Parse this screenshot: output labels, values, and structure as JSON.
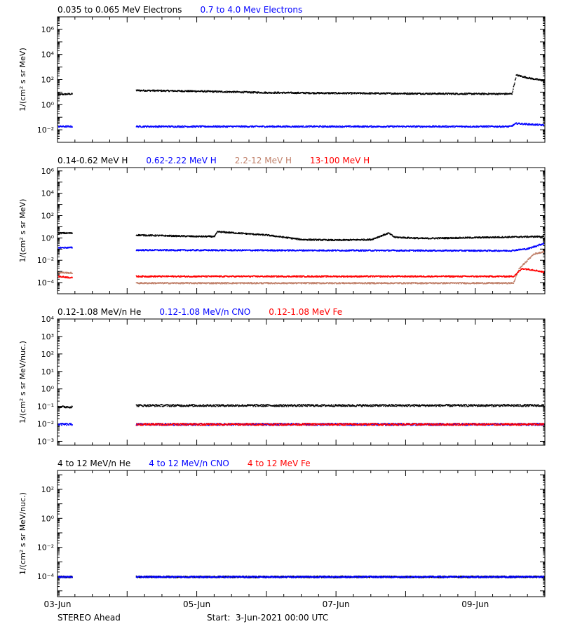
{
  "colors": {
    "black": "#000000",
    "blue": "#0000ff",
    "tan": "#c0806a",
    "red": "#ff0000"
  },
  "chart_data": [
    {
      "type": "scatter",
      "log_y": true,
      "ylabel": "1/(cm² s sr MeV)",
      "ylim": [
        0.001,
        10000000
      ],
      "y_ticks": [
        {
          "v": 0.01,
          "label": "10⁻²"
        },
        {
          "v": 1,
          "label": "10⁰"
        },
        {
          "v": 100,
          "label": "10²"
        },
        {
          "v": 10000,
          "label": "10⁴"
        },
        {
          "v": 1000000,
          "label": "10⁶"
        }
      ],
      "series": [
        {
          "name": "0.035 to 0.065 MeV Electrons",
          "color": "black",
          "segments": [
            {
              "x": [
                "2021-06-03",
                "2021-06-03 05:00"
              ],
              "y": [
                7,
                8
              ]
            },
            {
              "x": [
                "2021-06-04 03:00",
                "2021-06-05",
                "2021-06-06",
                "2021-06-07",
                "2021-06-08",
                "2021-06-09",
                "2021-06-09 12:30",
                "2021-06-09 14:00",
                "2021-06-09 18:00",
                "2021-06-10"
              ],
              "y": [
                15,
                13,
                10,
                9,
                8.5,
                8,
                8,
                250,
                150,
                85
              ]
            }
          ]
        },
        {
          "name": "0.7 to 4.0 Mev Electrons",
          "color": "blue",
          "segments": [
            {
              "x": [
                "2021-06-03",
                "2021-06-03 05:00"
              ],
              "y": [
                0.02,
                0.02
              ]
            },
            {
              "x": [
                "2021-06-04 03:00",
                "2021-06-09 12:00",
                "2021-06-09 14:00",
                "2021-06-10"
              ],
              "y": [
                0.02,
                0.02,
                0.035,
                0.025
              ]
            }
          ]
        }
      ]
    },
    {
      "type": "scatter",
      "log_y": true,
      "ylabel": "1/(cm² s sr MeV)",
      "ylim": [
        1e-05,
        2000000
      ],
      "y_ticks": [
        {
          "v": 0.0001,
          "label": "10⁻⁴"
        },
        {
          "v": 0.01,
          "label": "10⁻²"
        },
        {
          "v": 1,
          "label": "10⁰"
        },
        {
          "v": 100,
          "label": "10²"
        },
        {
          "v": 10000,
          "label": "10⁴"
        },
        {
          "v": 1000000,
          "label": "10⁶"
        }
      ],
      "series": [
        {
          "name": "0.14-0.62 MeV H",
          "color": "black",
          "segments": [
            {
              "x": [
                "2021-06-03",
                "2021-06-03 05:00"
              ],
              "y": [
                3,
                3
              ]
            },
            {
              "x": [
                "2021-06-04 03:00",
                "2021-06-05",
                "2021-06-05 06:00",
                "2021-06-05 07:00",
                "2021-06-06",
                "2021-06-06 12:00",
                "2021-06-07",
                "2021-06-07 12:00",
                "2021-06-07 18:00",
                "2021-06-07 20:00",
                "2021-06-08 06:00",
                "2021-06-09",
                "2021-06-10"
              ],
              "y": [
                2,
                1.5,
                1.5,
                4,
                2,
                0.8,
                0.7,
                0.8,
                3,
                1.3,
                1,
                1.2,
                1.5
              ]
            }
          ]
        },
        {
          "name": "0.62-2.22 MeV H",
          "color": "blue",
          "segments": [
            {
              "x": [
                "2021-06-03",
                "2021-06-03 05:00"
              ],
              "y": [
                0.15,
                0.15
              ]
            },
            {
              "x": [
                "2021-06-04 03:00",
                "2021-06-09 12:00",
                "2021-06-09 18:00",
                "2021-06-10"
              ],
              "y": [
                0.09,
                0.08,
                0.12,
                0.4
              ]
            }
          ]
        },
        {
          "name": "2.2-12 MeV H",
          "color": "tan",
          "segments": [
            {
              "x": [
                "2021-06-03",
                "2021-06-03 05:00"
              ],
              "y": [
                0.0009,
                0.0008
              ]
            },
            {
              "x": [
                "2021-06-04 03:00",
                "2021-06-09 13:00",
                "2021-06-09 15:00",
                "2021-06-09 20:00",
                "2021-06-10"
              ],
              "y": [
                0.0001,
                0.0001,
                0.002,
                0.04,
                0.07
              ]
            }
          ]
        },
        {
          "name": "13-100 MeV H",
          "color": "red",
          "segments": [
            {
              "x": [
                "2021-06-03",
                "2021-06-03 05:00"
              ],
              "y": [
                0.0004,
                0.0003
              ]
            },
            {
              "x": [
                "2021-06-04 03:00",
                "2021-06-09 13:00",
                "2021-06-09 16:00",
                "2021-06-09 20:00",
                "2021-06-10"
              ],
              "y": [
                0.0004,
                0.0004,
                0.002,
                0.0015,
                0.0009
              ]
            }
          ]
        }
      ]
    },
    {
      "type": "scatter",
      "log_y": true,
      "ylabel": "1/(cm² s sr MeV/nuc.)",
      "ylim": [
        0.0006,
        10000
      ],
      "y_ticks": [
        {
          "v": 0.001,
          "label": "10⁻³"
        },
        {
          "v": 0.01,
          "label": "10⁻²"
        },
        {
          "v": 0.1,
          "label": "10⁻¹"
        },
        {
          "v": 1,
          "label": "10⁰"
        },
        {
          "v": 10,
          "label": "10¹"
        },
        {
          "v": 100,
          "label": "10²"
        },
        {
          "v": 1000,
          "label": "10³"
        },
        {
          "v": 10000,
          "label": "10⁴"
        }
      ],
      "series": [
        {
          "name": "0.12-1.08 MeV/n He",
          "color": "black",
          "segments": [
            {
              "x": [
                "2021-06-03",
                "2021-06-03 05:00"
              ],
              "y": [
                0.1,
                0.1
              ]
            },
            {
              "x": [
                "2021-06-04 03:00",
                "2021-06-10"
              ],
              "y": [
                0.12,
                0.12
              ]
            }
          ]
        },
        {
          "name": "0.12-1.08 MeV/n CNO",
          "color": "blue",
          "segments": [
            {
              "x": [
                "2021-06-03",
                "2021-06-03 05:00"
              ],
              "y": [
                0.01,
                0.01
              ]
            },
            {
              "x": [
                "2021-06-04 03:00",
                "2021-06-10"
              ],
              "y": [
                0.01,
                0.01
              ]
            }
          ]
        },
        {
          "name": "0.12-1.08 MeV Fe",
          "color": "red",
          "segments": [
            {
              "x": [
                "2021-06-04 03:00",
                "2021-06-10"
              ],
              "y": [
                0.01,
                0.01
              ]
            }
          ]
        }
      ]
    },
    {
      "type": "scatter",
      "log_y": true,
      "ylabel": "1/(cm² s sr MeV/nuc.)",
      "ylim": [
        4e-06,
        2000
      ],
      "y_ticks": [
        {
          "v": 0.0001,
          "label": "10⁻⁴"
        },
        {
          "v": 0.01,
          "label": "10⁻²"
        },
        {
          "v": 1,
          "label": "10⁰"
        },
        {
          "v": 100,
          "label": "10²"
        }
      ],
      "series": [
        {
          "name": "4 to 12 MeV/n He",
          "color": "black",
          "segments": [
            {
              "x": [
                "2021-06-03",
                "2021-06-03 05:00"
              ],
              "y": [
                0.0001,
                0.0001
              ]
            },
            {
              "x": [
                "2021-06-04 03:00",
                "2021-06-10"
              ],
              "y": [
                0.0001,
                0.0001
              ]
            }
          ]
        },
        {
          "name": "4 to 12 MeV/n CNO",
          "color": "blue",
          "segments": [
            {
              "x": [
                "2021-06-03",
                "2021-06-03 05:00"
              ],
              "y": [
                0.0001,
                0.0001
              ]
            },
            {
              "x": [
                "2021-06-04 03:00",
                "2021-06-10"
              ],
              "y": [
                0.0001,
                0.0001
              ]
            }
          ]
        },
        {
          "name": "4 to 12 MeV Fe",
          "color": "red",
          "segments": []
        }
      ]
    }
  ],
  "x_axis": {
    "range": [
      "2021-06-03",
      "2021-06-10"
    ],
    "tick_labels": [
      {
        "t": "2021-06-03",
        "label": "03-Jun"
      },
      {
        "t": "2021-06-05",
        "label": "05-Jun"
      },
      {
        "t": "2021-06-07",
        "label": "07-Jun"
      },
      {
        "t": "2021-06-09",
        "label": "09-Jun"
      }
    ]
  },
  "footer": {
    "left": "STEREO Ahead",
    "center": "Start:  3-Jun-2021 00:00 UTC"
  }
}
